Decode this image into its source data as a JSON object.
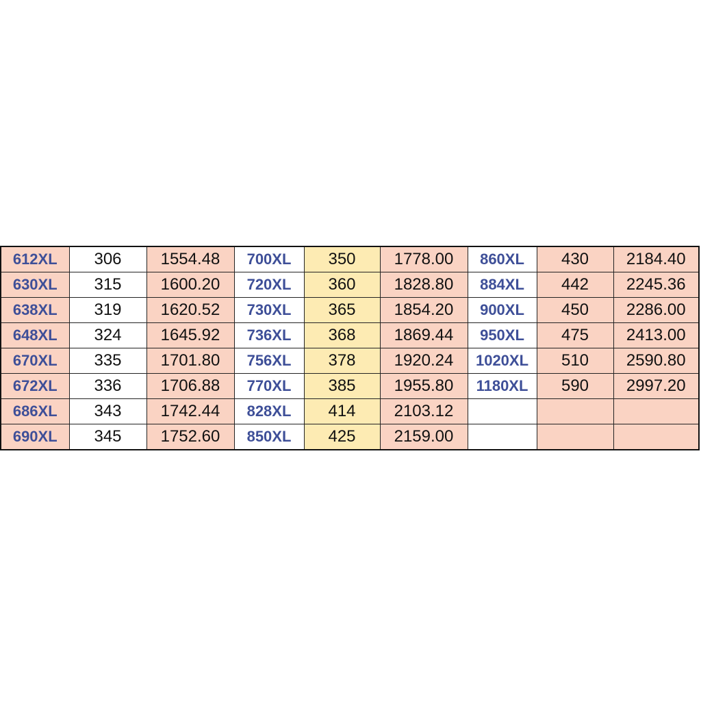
{
  "table": {
    "rows": [
      [
        "612XL",
        "306",
        "1554.48",
        "700XL",
        "350",
        "1778.00",
        "860XL",
        "430",
        "2184.40"
      ],
      [
        "630XL",
        "315",
        "1600.20",
        "720XL",
        "360",
        "1828.80",
        "884XL",
        "442",
        "2245.36"
      ],
      [
        "638XL",
        "319",
        "1620.52",
        "730XL",
        "365",
        "1854.20",
        "900XL",
        "450",
        "2286.00"
      ],
      [
        "648XL",
        "324",
        "1645.92",
        "736XL",
        "368",
        "1869.44",
        "950XL",
        "475",
        "2413.00"
      ],
      [
        "670XL",
        "335",
        "1701.80",
        "756XL",
        "378",
        "1920.24",
        "1020XL",
        "510",
        "2590.80"
      ],
      [
        "672XL",
        "336",
        "1706.88",
        "770XL",
        "385",
        "1955.80",
        "1180XL",
        "590",
        "2997.20"
      ],
      [
        "686XL",
        "343",
        "1742.44",
        "828XL",
        "414",
        "2103.12"
      ],
      [
        "690XL",
        "345",
        "1752.60",
        "850XL",
        "425",
        "2159.00"
      ]
    ]
  }
}
